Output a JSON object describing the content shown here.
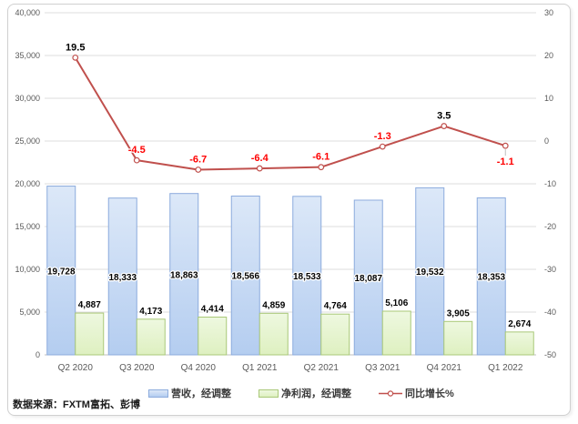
{
  "source_note": "数据来源：FXTM富拓、彭博",
  "chart_data": {
    "type": "bar",
    "subtype": "clustered-bars-with-line-on-secondary-axis",
    "title": "",
    "categories": [
      "Q2 2020",
      "Q3 2020",
      "Q4 2020",
      "Q1 2021",
      "Q2 2021",
      "Q3 2021",
      "Q4 2021",
      "Q1 2022"
    ],
    "series": [
      {
        "name": "营收，经调整",
        "type": "bar",
        "axis": "left",
        "values": [
          19728,
          18333,
          18863,
          18566,
          18533,
          18087,
          19532,
          18353
        ],
        "labels": [
          "19,728",
          "18,333",
          "18,863",
          "18,566",
          "18,533",
          "18,087",
          "19,532",
          "18,353"
        ],
        "fill": "#c7d9f2",
        "border": "#8cabdd"
      },
      {
        "name": "净利润，经调整",
        "type": "bar",
        "axis": "left",
        "values": [
          4887,
          4173,
          4414,
          4859,
          4764,
          5106,
          3905,
          2674
        ],
        "labels": [
          "4,887",
          "4,173",
          "4,414",
          "4,859",
          "4,764",
          "5,106",
          "3,905",
          "2,674"
        ],
        "fill": "#e6f3cf",
        "border": "#a9c878"
      },
      {
        "name": "同比增长%",
        "type": "line",
        "axis": "right",
        "values": [
          19.5,
          -4.5,
          -6.7,
          -6.4,
          -6.1,
          -1.3,
          3.5,
          -1.1
        ],
        "labels": [
          "19.5",
          "-4.5",
          "-6.7",
          "-6.4",
          "-6.1",
          "-1.3",
          "3.5",
          "-1.1"
        ],
        "label_placement": [
          "above",
          "above",
          "above",
          "above",
          "above",
          "above",
          "above",
          "below"
        ],
        "color": "#c0504d",
        "positive_label_color": "#000000",
        "negative_label_color": "#fe0000"
      }
    ],
    "left_axis": {
      "min": 0,
      "max": 40000,
      "step": 5000,
      "ticks": [
        "40,000",
        "35,000",
        "30,000",
        "25,000",
        "20,000",
        "15,000",
        "10,000",
        "5,000",
        "0"
      ]
    },
    "right_axis": {
      "min": -50,
      "max": 30,
      "step": 10,
      "ticks": [
        "30",
        "20",
        "10",
        "0",
        "-10",
        "-20",
        "-30",
        "-40",
        "-50"
      ]
    },
    "grid": true,
    "legend_position": "bottom"
  },
  "colors": {
    "gridline": "#dcdcdc",
    "axis_text": "#595959",
    "frame_border": "#d0d0d0",
    "background": "#ffffff"
  }
}
